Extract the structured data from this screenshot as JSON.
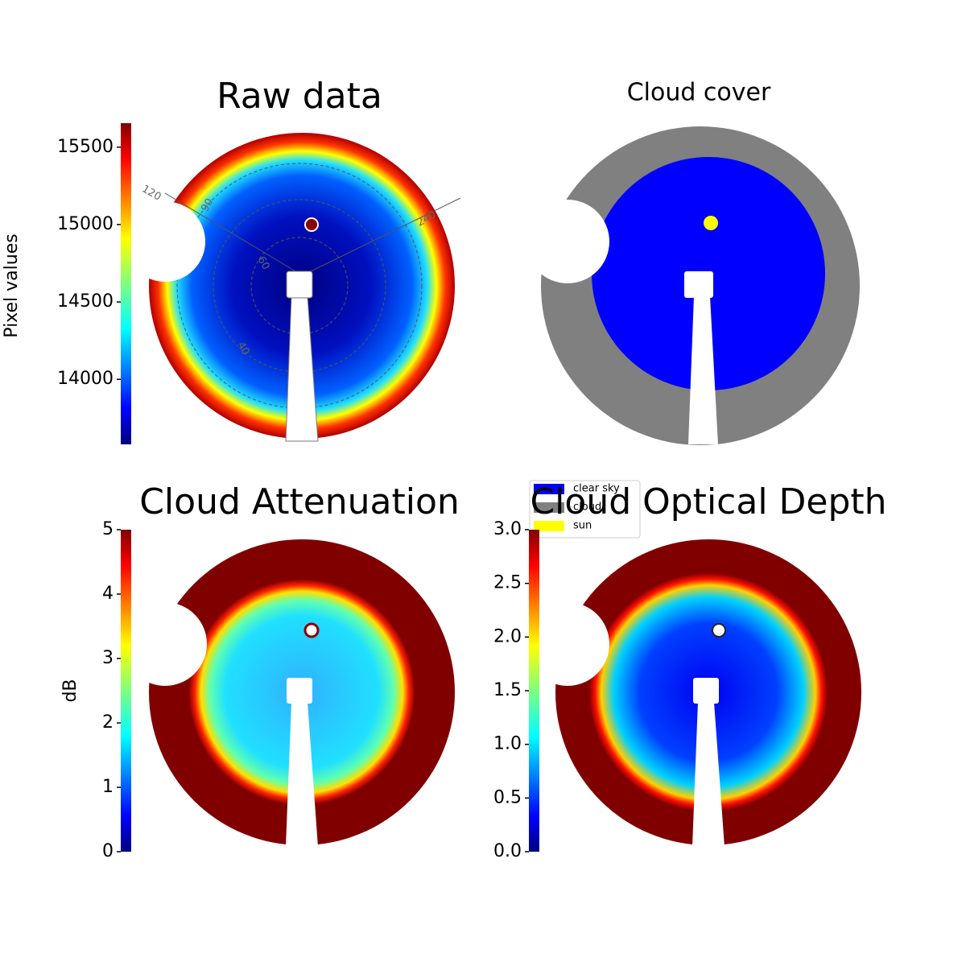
{
  "chart_data": [
    {
      "type": "image",
      "title": "Raw data",
      "colorbar_label": "Pixel values",
      "clim": [
        13580,
        15655
      ],
      "ticks": [
        14000,
        14500,
        15000,
        15500
      ],
      "annotations": [
        "120",
        "90",
        "240",
        "60",
        "40"
      ]
    },
    {
      "type": "image",
      "title": "Cloud cover",
      "legend": [
        {
          "label": "clear sky",
          "color": "#0000ff"
        },
        {
          "label": "cloud",
          "color": "#808080"
        },
        {
          "label": "sun",
          "color": "#ffff00"
        }
      ]
    },
    {
      "type": "image",
      "title": "Cloud Attenuation",
      "colorbar_label": "dB",
      "clim": [
        0,
        5
      ],
      "ticks": [
        0,
        1,
        2,
        3,
        4,
        5
      ]
    },
    {
      "type": "image",
      "title": "Cloud Optical Depth",
      "clim": [
        0,
        3
      ],
      "ticks": [
        {
          "value": 0,
          "label": "0.0"
        },
        0.5,
        {
          "value": 1,
          "label": "1.0"
        },
        1.5,
        {
          "value": 2,
          "label": "2.0"
        },
        2.5,
        {
          "value": 3,
          "label": "3.0"
        }
      ]
    }
  ]
}
